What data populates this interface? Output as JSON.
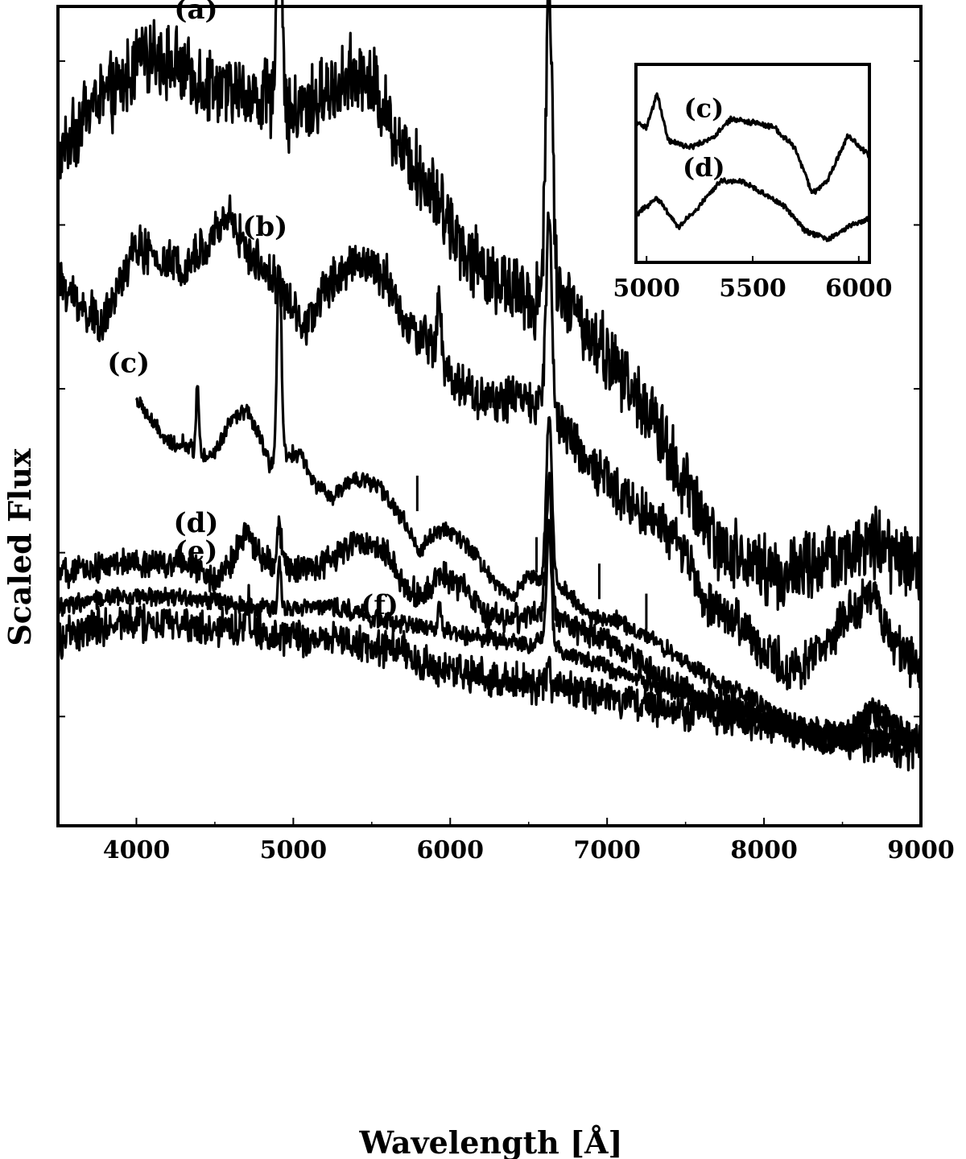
{
  "chart_data": [
    {
      "type": "line",
      "xlabel": "Wavelength [Å]",
      "ylabel": "Scaled Flux",
      "xlim": [
        3500,
        9000
      ],
      "xticks": [
        4000,
        5000,
        6000,
        7000,
        8000,
        9000
      ],
      "yticks_labeled": false,
      "grid": false,
      "series": [
        {
          "name": "(a)",
          "noise": 0.08,
          "points": [
            [
              3500,
              0.72
            ],
            [
              3700,
              0.82
            ],
            [
              3900,
              0.85
            ],
            [
              4000,
              0.9
            ],
            [
              4100,
              0.92
            ],
            [
              4300,
              0.88
            ],
            [
              4500,
              0.85
            ],
            [
              4700,
              0.84
            ],
            [
              4900,
              0.82
            ],
            [
              5000,
              0.8
            ],
            [
              5200,
              0.84
            ],
            [
              5400,
              0.88
            ],
            [
              5500,
              0.86
            ],
            [
              5700,
              0.74
            ],
            [
              5900,
              0.66
            ],
            [
              6000,
              0.6
            ],
            [
              6200,
              0.52
            ],
            [
              6400,
              0.48
            ],
            [
              6550,
              0.46
            ],
            [
              6620,
              0.5
            ],
            [
              6700,
              0.48
            ],
            [
              6900,
              0.4
            ],
            [
              7100,
              0.32
            ],
            [
              7300,
              0.24
            ],
            [
              7500,
              0.12
            ],
            [
              7700,
              0.02
            ],
            [
              7900,
              -0.02
            ],
            [
              8100,
              -0.04
            ],
            [
              8300,
              -0.02
            ],
            [
              8500,
              0.0
            ],
            [
              8700,
              0.02
            ],
            [
              8900,
              -0.02
            ],
            [
              9000,
              -0.04
            ]
          ],
          "emission_lines": [
            [
              4910,
              0.55,
              15
            ],
            [
              6630,
              0.55,
              20
            ]
          ]
        },
        {
          "name": "(b)",
          "noise": 0.05,
          "points": [
            [
              3500,
              0.5
            ],
            [
              3650,
              0.45
            ],
            [
              3800,
              0.42
            ],
            [
              3900,
              0.5
            ],
            [
              4000,
              0.56
            ],
            [
              4100,
              0.54
            ],
            [
              4300,
              0.52
            ],
            [
              4500,
              0.58
            ],
            [
              4600,
              0.62
            ],
            [
              4700,
              0.55
            ],
            [
              4900,
              0.5
            ],
            [
              5000,
              0.44
            ],
            [
              5100,
              0.42
            ],
            [
              5200,
              0.48
            ],
            [
              5400,
              0.54
            ],
            [
              5600,
              0.5
            ],
            [
              5700,
              0.42
            ],
            [
              5900,
              0.38
            ],
            [
              6000,
              0.32
            ],
            [
              6200,
              0.28
            ],
            [
              6400,
              0.28
            ],
            [
              6600,
              0.28
            ],
            [
              6700,
              0.24
            ],
            [
              6900,
              0.16
            ],
            [
              7100,
              0.1
            ],
            [
              7300,
              0.06
            ],
            [
              7500,
              0.0
            ],
            [
              7600,
              -0.08
            ],
            [
              7800,
              -0.12
            ],
            [
              8000,
              -0.18
            ],
            [
              8200,
              -0.22
            ],
            [
              8400,
              -0.16
            ],
            [
              8600,
              -0.1
            ],
            [
              8700,
              -0.06
            ],
            [
              8800,
              -0.16
            ],
            [
              9000,
              -0.22
            ]
          ],
          "emission_lines": [
            [
              5930,
              0.1,
              12
            ],
            [
              6630,
              0.35,
              18
            ]
          ]
        },
        {
          "name": "(c)",
          "noise": 0.018,
          "points": [
            [
              4000,
              0.28
            ],
            [
              4100,
              0.24
            ],
            [
              4200,
              0.2
            ],
            [
              4300,
              0.2
            ],
            [
              4400,
              0.18
            ],
            [
              4500,
              0.18
            ],
            [
              4600,
              0.24
            ],
            [
              4700,
              0.26
            ],
            [
              4800,
              0.2
            ],
            [
              4850,
              0.16
            ],
            [
              4950,
              0.18
            ],
            [
              5050,
              0.18
            ],
            [
              5150,
              0.12
            ],
            [
              5250,
              0.1
            ],
            [
              5400,
              0.14
            ],
            [
              5550,
              0.12
            ],
            [
              5700,
              0.06
            ],
            [
              5800,
              0.0
            ],
            [
              5900,
              0.04
            ],
            [
              6000,
              0.04
            ],
            [
              6150,
              0.0
            ],
            [
              6300,
              -0.06
            ],
            [
              6400,
              -0.08
            ],
            [
              6500,
              -0.04
            ],
            [
              6580,
              -0.05
            ],
            [
              6700,
              -0.06
            ],
            [
              6900,
              -0.12
            ],
            [
              7050,
              -0.12
            ],
            [
              7150,
              -0.14
            ],
            [
              7300,
              -0.16
            ],
            [
              7500,
              -0.2
            ],
            [
              7700,
              -0.24
            ],
            [
              7900,
              -0.26
            ],
            [
              8100,
              -0.3
            ],
            [
              8300,
              -0.34
            ],
            [
              8400,
              -0.36
            ],
            [
              8500,
              -0.34
            ],
            [
              8600,
              -0.3
            ],
            [
              8700,
              -0.28
            ],
            [
              8800,
              -0.3
            ],
            [
              9000,
              -0.36
            ]
          ],
          "emission_lines": [
            [
              4390,
              0.12,
              10
            ],
            [
              4910,
              0.36,
              14
            ],
            [
              6630,
              0.3,
              18
            ]
          ]
        },
        {
          "name": "(d)",
          "noise": 0.03,
          "points": [
            [
              3500,
              -0.04
            ],
            [
              3700,
              -0.03
            ],
            [
              3900,
              -0.02
            ],
            [
              4100,
              -0.02
            ],
            [
              4300,
              -0.02
            ],
            [
              4500,
              -0.05
            ],
            [
              4600,
              -0.02
            ],
            [
              4700,
              0.04
            ],
            [
              4800,
              -0.01
            ],
            [
              5000,
              -0.03
            ],
            [
              5200,
              -0.02
            ],
            [
              5400,
              0.02
            ],
            [
              5600,
              0.0
            ],
            [
              5700,
              -0.06
            ],
            [
              5800,
              -0.08
            ],
            [
              5950,
              -0.04
            ],
            [
              6100,
              -0.07
            ],
            [
              6250,
              -0.12
            ],
            [
              6450,
              -0.12
            ],
            [
              6600,
              -0.1
            ],
            [
              6800,
              -0.14
            ],
            [
              7000,
              -0.16
            ],
            [
              7200,
              -0.2
            ],
            [
              7400,
              -0.24
            ],
            [
              7600,
              -0.27
            ],
            [
              7800,
              -0.28
            ],
            [
              8000,
              -0.3
            ],
            [
              8200,
              -0.32
            ],
            [
              8400,
              -0.34
            ],
            [
              8600,
              -0.32
            ],
            [
              8700,
              -0.29
            ],
            [
              8800,
              -0.32
            ],
            [
              9000,
              -0.34
            ]
          ],
          "emission_lines": [
            [
              4910,
              0.08,
              12
            ],
            [
              6630,
              0.25,
              16
            ]
          ]
        },
        {
          "name": "(e)",
          "noise": 0.02,
          "points": [
            [
              3500,
              -0.1
            ],
            [
              3700,
              -0.09
            ],
            [
              3900,
              -0.08
            ],
            [
              4100,
              -0.08
            ],
            [
              4300,
              -0.08
            ],
            [
              4500,
              -0.09
            ],
            [
              4700,
              -0.1
            ],
            [
              4900,
              -0.1
            ],
            [
              5100,
              -0.1
            ],
            [
              5300,
              -0.1
            ],
            [
              5500,
              -0.12
            ],
            [
              5700,
              -0.13
            ],
            [
              5900,
              -0.14
            ],
            [
              6100,
              -0.15
            ],
            [
              6300,
              -0.16
            ],
            [
              6500,
              -0.17
            ],
            [
              6600,
              -0.16
            ],
            [
              6700,
              -0.18
            ],
            [
              6900,
              -0.2
            ],
            [
              7100,
              -0.22
            ],
            [
              7300,
              -0.24
            ],
            [
              7500,
              -0.26
            ],
            [
              7700,
              -0.28
            ],
            [
              7900,
              -0.3
            ],
            [
              8100,
              -0.32
            ],
            [
              8300,
              -0.33
            ],
            [
              8500,
              -0.33
            ],
            [
              8700,
              -0.33
            ],
            [
              8900,
              -0.34
            ],
            [
              9000,
              -0.34
            ]
          ],
          "emission_lines": [
            [
              4910,
              0.08,
              10
            ],
            [
              5930,
              0.05,
              10
            ],
            [
              6630,
              0.22,
              15
            ]
          ]
        },
        {
          "name": "(f)",
          "noise": 0.04,
          "points": [
            [
              3500,
              -0.16
            ],
            [
              3700,
              -0.14
            ],
            [
              3900,
              -0.13
            ],
            [
              4100,
              -0.13
            ],
            [
              4300,
              -0.13
            ],
            [
              4500,
              -0.14
            ],
            [
              4700,
              -0.14
            ],
            [
              4900,
              -0.15
            ],
            [
              5100,
              -0.16
            ],
            [
              5300,
              -0.16
            ],
            [
              5500,
              -0.17
            ],
            [
              5700,
              -0.18
            ],
            [
              5900,
              -0.21
            ],
            [
              6100,
              -0.22
            ],
            [
              6300,
              -0.23
            ],
            [
              6500,
              -0.24
            ],
            [
              6700,
              -0.25
            ],
            [
              6900,
              -0.26
            ],
            [
              7100,
              -0.27
            ],
            [
              7300,
              -0.28
            ],
            [
              7500,
              -0.29
            ],
            [
              7700,
              -0.3
            ],
            [
              7900,
              -0.31
            ],
            [
              8100,
              -0.32
            ],
            [
              8300,
              -0.33
            ],
            [
              8500,
              -0.34
            ],
            [
              8700,
              -0.35
            ],
            [
              8900,
              -0.36
            ],
            [
              9000,
              -0.36
            ]
          ],
          "emission_lines": [
            [
              4710,
              0.06,
              10
            ],
            [
              6630,
              0.04,
              10
            ]
          ]
        }
      ],
      "annotations": {
        "feature_markers_x": [
          5790,
          6550,
          6950,
          7250
        ]
      }
    },
    {
      "type": "line",
      "inset": true,
      "xlim": [
        4950,
        6050
      ],
      "xticks": [
        5000,
        5500,
        6000
      ],
      "series": [
        {
          "name": "(c)",
          "noise": 0.015,
          "points": [
            [
              4950,
              0.72
            ],
            [
              5000,
              0.7
            ],
            [
              5050,
              0.86
            ],
            [
              5100,
              0.64
            ],
            [
              5200,
              0.6
            ],
            [
              5300,
              0.64
            ],
            [
              5400,
              0.74
            ],
            [
              5500,
              0.72
            ],
            [
              5600,
              0.7
            ],
            [
              5700,
              0.6
            ],
            [
              5780,
              0.38
            ],
            [
              5850,
              0.44
            ],
            [
              5950,
              0.66
            ],
            [
              6050,
              0.56
            ]
          ]
        },
        {
          "name": "(d)",
          "noise": 0.015,
          "points": [
            [
              4950,
              0.28
            ],
            [
              5050,
              0.36
            ],
            [
              5150,
              0.22
            ],
            [
              5250,
              0.32
            ],
            [
              5350,
              0.44
            ],
            [
              5450,
              0.44
            ],
            [
              5550,
              0.38
            ],
            [
              5650,
              0.32
            ],
            [
              5750,
              0.2
            ],
            [
              5850,
              0.16
            ],
            [
              5950,
              0.22
            ],
            [
              6050,
              0.26
            ]
          ]
        }
      ]
    }
  ]
}
